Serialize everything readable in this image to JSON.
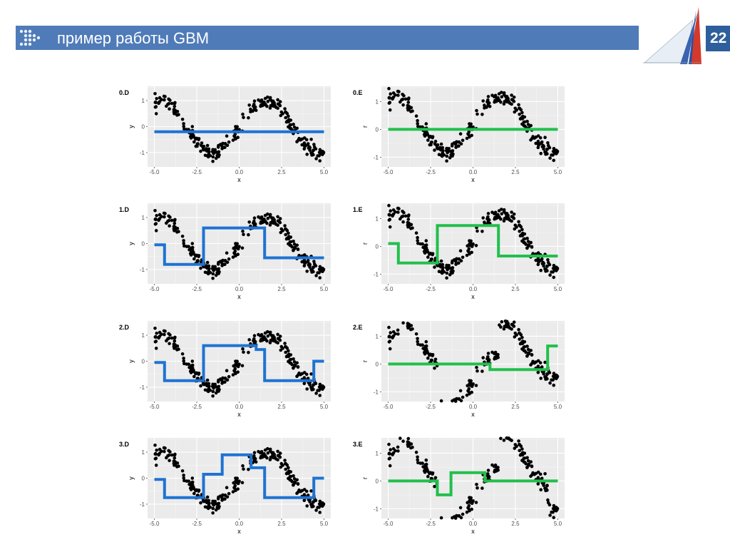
{
  "header": {
    "title": "пример работы GBM",
    "page_number": "22"
  },
  "colors": {
    "header_bar": "#4f7bb8",
    "page_box": "#2e5f9c",
    "panel_bg": "#ebebeb",
    "grid": "#ffffff",
    "points": "#000000",
    "D_line": "#1e73d2",
    "E_line": "#22bf4c"
  },
  "chart_data": [
    {
      "id": "0.D",
      "type": "scatter",
      "title": "0.D",
      "xlabel": "x",
      "ylabel": "y",
      "xlim": [
        -5.4,
        5.4
      ],
      "ylim": [
        -1.55,
        1.55
      ],
      "xticks": [
        "-5.0",
        "-2.5",
        "0.0",
        "2.5",
        "5.0"
      ],
      "yticks": [
        "-1",
        "0",
        "1"
      ],
      "line_color": "#1e73d2",
      "fit_line": [
        [
          -5,
          -0.2
        ],
        [
          5,
          -0.2
        ]
      ]
    },
    {
      "id": "0.E",
      "type": "scatter",
      "title": "0.E",
      "xlabel": "x",
      "ylabel": "r",
      "xlim": [
        -5.4,
        5.4
      ],
      "ylim": [
        -1.35,
        1.55
      ],
      "xticks": [
        "-5.0",
        "-2.5",
        "0.0",
        "2.5",
        "5.0"
      ],
      "yticks": [
        "-1",
        "0",
        "1"
      ],
      "line_color": "#22bf4c",
      "fit_line": [
        [
          -5,
          0
        ],
        [
          5,
          0
        ]
      ]
    },
    {
      "id": "1.D",
      "type": "scatter",
      "title": "1.D",
      "xlabel": "x",
      "ylabel": "y",
      "xlim": [
        -5.4,
        5.4
      ],
      "ylim": [
        -1.55,
        1.55
      ],
      "xticks": [
        "-5.0",
        "-2.5",
        "0.0",
        "2.5",
        "5.0"
      ],
      "yticks": [
        "-1",
        "0",
        "1"
      ],
      "line_color": "#1e73d2",
      "fit_line": [
        [
          -5,
          -0.05
        ],
        [
          -4.4,
          -0.05
        ],
        [
          -4.4,
          -0.8
        ],
        [
          -2.1,
          -0.8
        ],
        [
          -2.1,
          0.6
        ],
        [
          1.5,
          0.6
        ],
        [
          1.5,
          -0.55
        ],
        [
          5,
          -0.55
        ]
      ]
    },
    {
      "id": "1.E",
      "type": "scatter",
      "title": "1.E",
      "xlabel": "x",
      "ylabel": "r",
      "xlim": [
        -5.4,
        5.4
      ],
      "ylim": [
        -1.35,
        1.55
      ],
      "xticks": [
        "-5.0",
        "-2.5",
        "0.0",
        "2.5",
        "5.0"
      ],
      "yticks": [
        "-1",
        "0",
        "1"
      ],
      "line_color": "#22bf4c",
      "fit_line": [
        [
          -5,
          0.1
        ],
        [
          -4.4,
          0.1
        ],
        [
          -4.4,
          -0.6
        ],
        [
          -2.1,
          -0.6
        ],
        [
          -2.1,
          0.75
        ],
        [
          1.5,
          0.75
        ],
        [
          1.5,
          -0.35
        ],
        [
          5,
          -0.35
        ]
      ]
    },
    {
      "id": "2.D",
      "type": "scatter",
      "title": "2.D",
      "xlabel": "x",
      "ylabel": "y",
      "xlim": [
        -5.4,
        5.4
      ],
      "ylim": [
        -1.55,
        1.55
      ],
      "xticks": [
        "-5.0",
        "-2.5",
        "0.0",
        "2.5",
        "5.0"
      ],
      "yticks": [
        "-1",
        "0",
        "1"
      ],
      "line_color": "#1e73d2",
      "fit_line": [
        [
          -5,
          -0.05
        ],
        [
          -4.4,
          -0.05
        ],
        [
          -4.4,
          -0.75
        ],
        [
          -2.1,
          -0.75
        ],
        [
          -2.1,
          0.6
        ],
        [
          1.0,
          0.6
        ],
        [
          1.0,
          0.45
        ],
        [
          1.5,
          0.45
        ],
        [
          1.5,
          -0.75
        ],
        [
          4.4,
          -0.75
        ],
        [
          4.4,
          0
        ],
        [
          5,
          0
        ]
      ]
    },
    {
      "id": "2.E",
      "type": "scatter",
      "title": "2.E",
      "xlabel": "x",
      "ylabel": "r",
      "xlim": [
        -5.4,
        5.4
      ],
      "ylim": [
        -1.35,
        1.55
      ],
      "xticks": [
        "-5.0",
        "-2.5",
        "0.0",
        "2.5",
        "5.0"
      ],
      "yticks": [
        "-1",
        "0",
        "1"
      ],
      "line_color": "#22bf4c",
      "fit_line": [
        [
          -5,
          0
        ],
        [
          1.0,
          0
        ],
        [
          1.0,
          -0.2
        ],
        [
          4.4,
          -0.2
        ],
        [
          4.4,
          0.65
        ],
        [
          5,
          0.65
        ]
      ]
    },
    {
      "id": "3.D",
      "type": "scatter",
      "title": "3.D",
      "xlabel": "x",
      "ylabel": "y",
      "xlim": [
        -5.4,
        5.4
      ],
      "ylim": [
        -1.55,
        1.55
      ],
      "xticks": [
        "-5.0",
        "-2.5",
        "0.0",
        "2.5",
        "5.0"
      ],
      "yticks": [
        "-1",
        "0",
        "1"
      ],
      "line_color": "#1e73d2",
      "fit_line": [
        [
          -5,
          -0.05
        ],
        [
          -4.4,
          -0.05
        ],
        [
          -4.4,
          -0.75
        ],
        [
          -2.1,
          -0.75
        ],
        [
          -2.1,
          0.15
        ],
        [
          -1.0,
          0.15
        ],
        [
          -1.0,
          0.9
        ],
        [
          0.7,
          0.9
        ],
        [
          0.7,
          0.4
        ],
        [
          1.5,
          0.4
        ],
        [
          1.5,
          -0.75
        ],
        [
          4.4,
          -0.75
        ],
        [
          4.4,
          0
        ],
        [
          5,
          0
        ]
      ]
    },
    {
      "id": "3.E",
      "type": "scatter",
      "title": "3.E",
      "xlabel": "x",
      "ylabel": "r",
      "xlim": [
        -5.4,
        5.4
      ],
      "ylim": [
        -1.35,
        1.55
      ],
      "xticks": [
        "-5.0",
        "-2.5",
        "0.0",
        "2.5",
        "5.0"
      ],
      "yticks": [
        "-1",
        "0",
        "1"
      ],
      "line_color": "#22bf4c",
      "fit_line": [
        [
          -5,
          0
        ],
        [
          -2.1,
          0
        ],
        [
          -2.1,
          -0.5
        ],
        [
          -1.3,
          -0.5
        ],
        [
          -1.3,
          0.3
        ],
        [
          0.7,
          0.3
        ],
        [
          0.7,
          0
        ],
        [
          5,
          0
        ]
      ]
    }
  ]
}
